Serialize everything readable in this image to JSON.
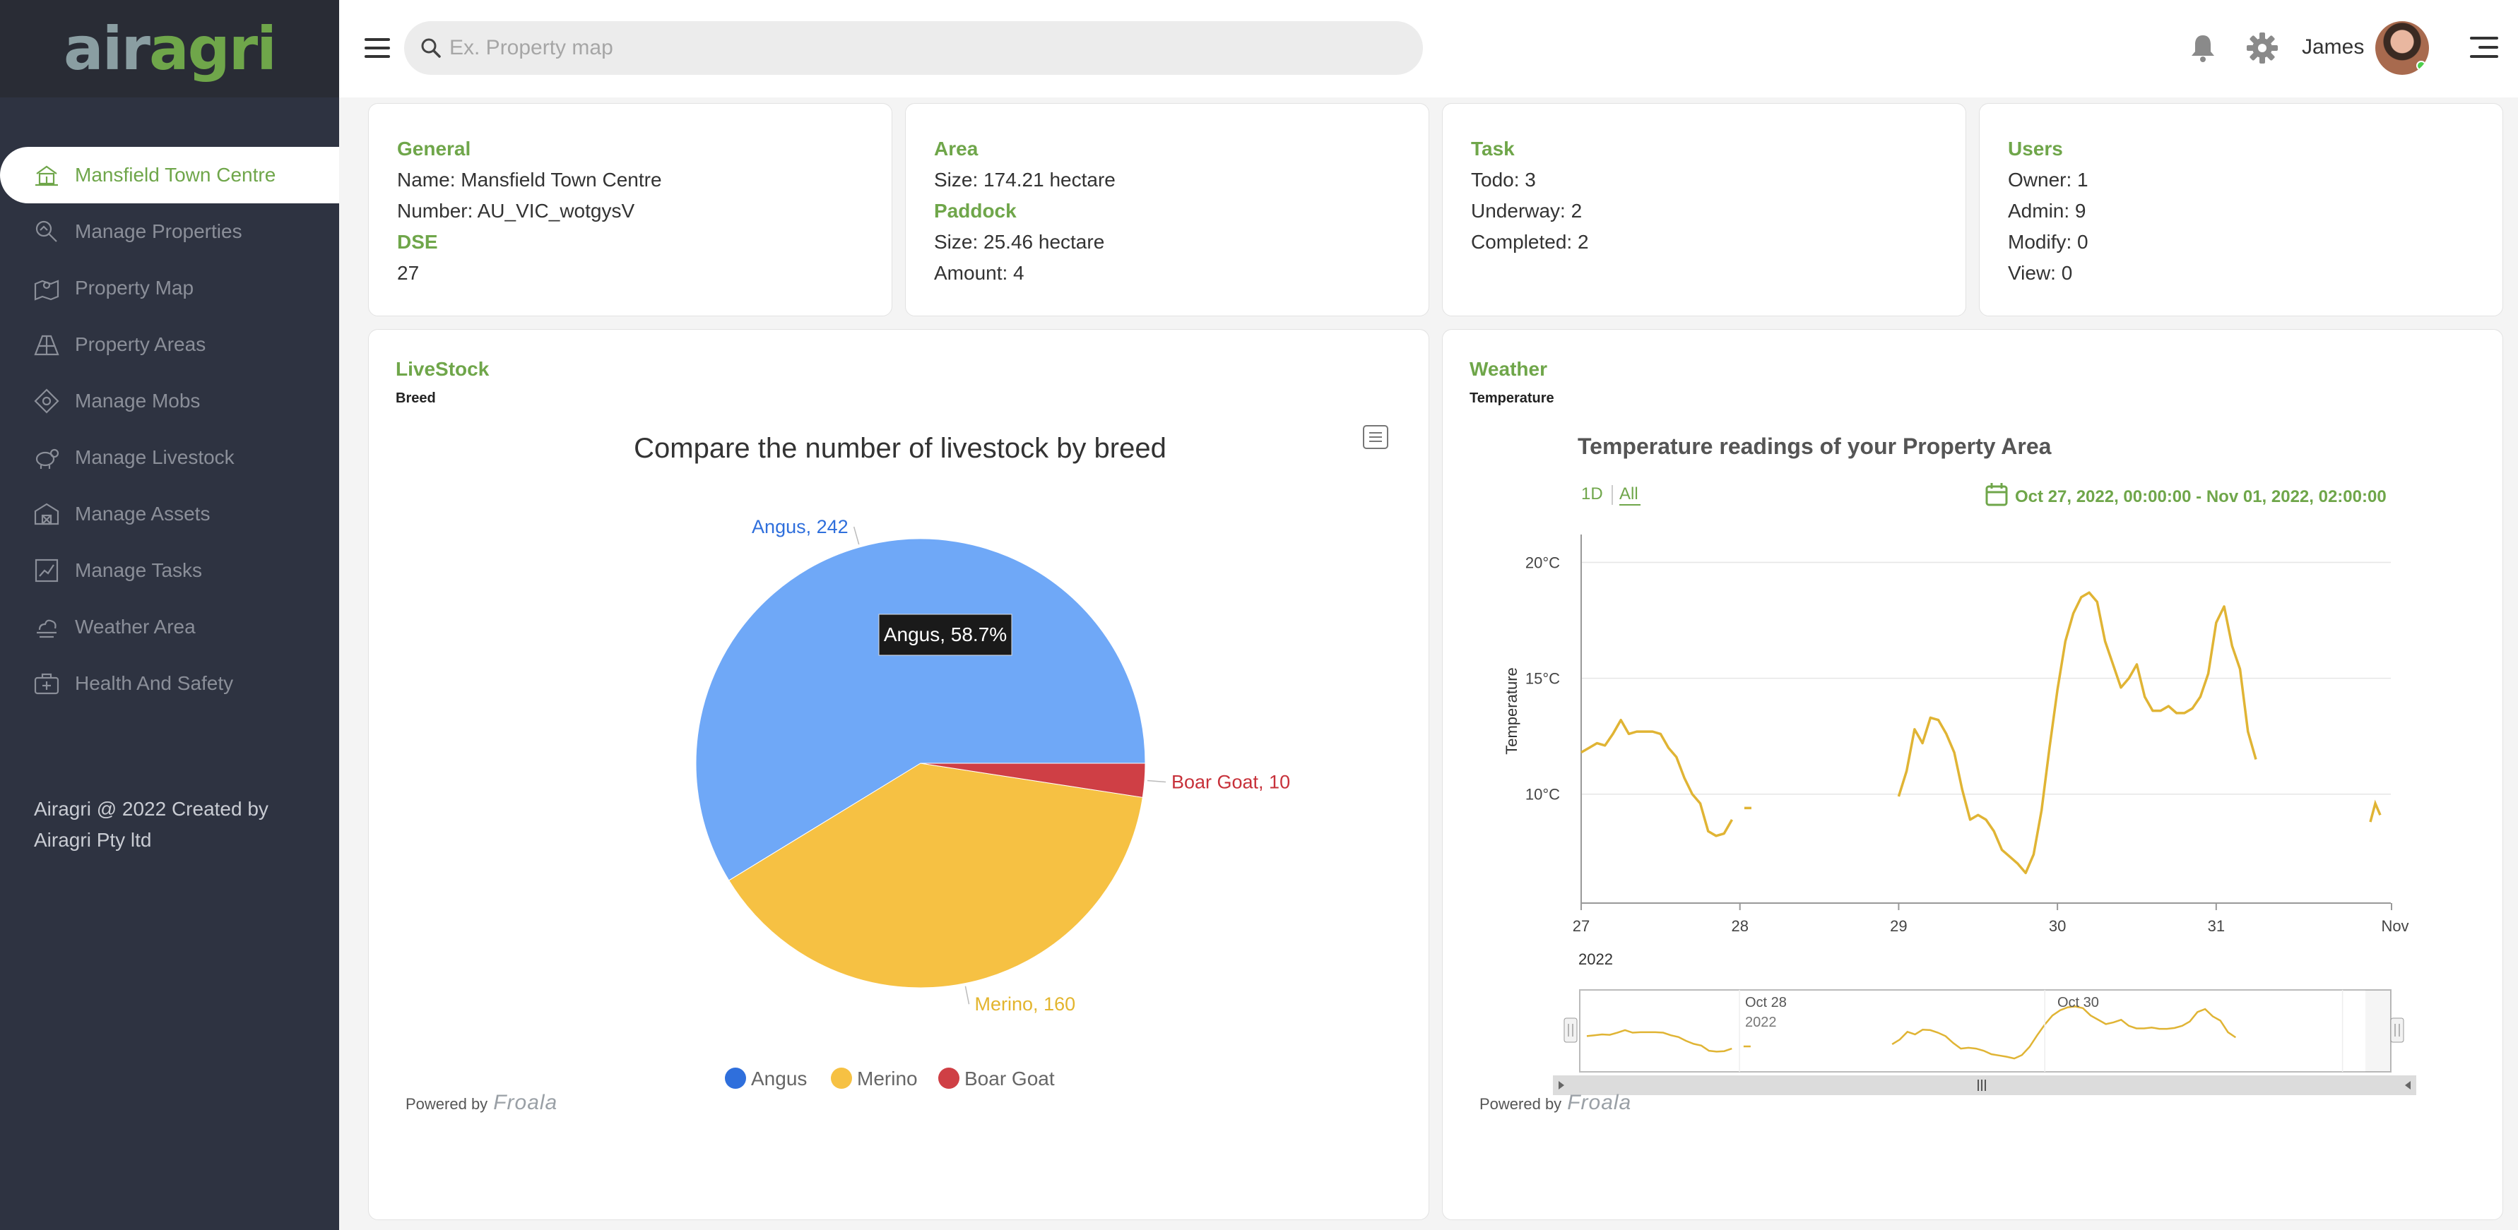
{
  "app": {
    "logo_part1": "air",
    "logo_part2": "agri"
  },
  "sidebar": {
    "items": [
      {
        "label": "Mansfield Town Centre",
        "icon": "farmhouse-icon",
        "active": true
      },
      {
        "label": "Manage Properties",
        "icon": "search-property-icon"
      },
      {
        "label": "Property Map",
        "icon": "map-pin-icon"
      },
      {
        "label": "Property Areas",
        "icon": "field-area-icon"
      },
      {
        "label": "Manage Mobs",
        "icon": "mob-icon"
      },
      {
        "label": "Manage Livestock",
        "icon": "sheep-icon"
      },
      {
        "label": "Manage Assets",
        "icon": "barn-icon"
      },
      {
        "label": "Manage Tasks",
        "icon": "task-chart-icon"
      },
      {
        "label": "Weather Area",
        "icon": "weather-icon"
      },
      {
        "label": "Health And Safety",
        "icon": "first-aid-kit-icon"
      }
    ],
    "footer": "Airagri @ 2022 Created by Airagri Pty ltd"
  },
  "topbar": {
    "search_placeholder": "Ex. Property map",
    "username": "James"
  },
  "cards": {
    "general": {
      "title": "General",
      "name": "Name: Mansfield Town Centre",
      "number": "Number: AU_VIC_wotgysV",
      "dse_label": "DSE",
      "dse_value": "27"
    },
    "area": {
      "title": "Area",
      "size": "Size: 174.21 hectare",
      "paddock_label": "Paddock",
      "paddock_size": "Size: 25.46 hectare",
      "amount": "Amount: 4"
    },
    "task": {
      "title": "Task",
      "todo": "Todo: 3",
      "underway": "Underway: 2",
      "completed": "Completed: 2"
    },
    "users": {
      "title": "Users",
      "owner": "Owner: 1",
      "admin": "Admin: 9",
      "modify": "Modify: 0",
      "view": "View: 0"
    }
  },
  "livestock": {
    "title": "LiveStock",
    "subtitle": "Breed",
    "powered_by": "Powered by",
    "brand": "Froala",
    "tooltip": "Angus, 58.7%"
  },
  "weather": {
    "title": "Weather",
    "subtitle": "Temperature",
    "powered_by": "Powered by",
    "brand": "Froala",
    "range_1d": "1D",
    "range_all": "All",
    "date_range": "Oct 27, 2022, 00:00:00 - Nov 01, 2022, 02:00:00",
    "year": "2022",
    "nav_labels": [
      "Oct 28",
      "2022",
      "Oct 30"
    ]
  },
  "colors": {
    "accent": "#6fa64a",
    "sidebar_bg": "#2e3341",
    "angus": "#6fa8f7",
    "merino": "#f6c143",
    "boar_goat": "#cf3f45",
    "temp_line": "#e0b434"
  },
  "chart_data": [
    {
      "type": "pie",
      "title": "Compare the number of livestock by breed",
      "categories": [
        "Angus",
        "Merino",
        "Boar Goat"
      ],
      "values": [
        242,
        160,
        10
      ],
      "data_labels": [
        "Angus, 242",
        "Merino, 160",
        "Boar Goat, 10"
      ],
      "legend_position": "bottom"
    },
    {
      "type": "line",
      "title": "Temperature readings of your Property Area",
      "ylabel": "Temperature",
      "y_ticks": [
        "10°C",
        "15°C",
        "20°C"
      ],
      "x_ticks": [
        "27",
        "28",
        "29",
        "30",
        "31",
        "Nov"
      ],
      "grid": true,
      "series": [
        {
          "x_days": [
            27.0,
            27.05,
            27.1,
            27.15,
            27.2,
            27.25,
            27.3,
            27.35,
            27.4,
            27.45,
            27.5,
            27.55,
            27.6,
            27.65,
            27.7,
            27.75,
            27.8,
            27.85,
            27.9,
            27.95,
            28.0,
            28.05,
            28.1,
            28.15,
            28.2,
            28.25,
            28.3,
            28.35,
            28.4,
            28.45,
            28.5,
            28.55,
            28.6,
            28.65,
            28.7,
            28.75,
            28.8,
            28.85,
            28.9,
            28.95,
            29.0,
            29.05,
            29.1,
            29.15,
            29.2,
            29.25,
            29.3,
            29.35,
            29.4,
            29.45,
            29.5,
            29.55,
            29.6,
            29.65,
            29.7,
            29.75,
            29.8,
            29.85,
            29.9,
            29.95,
            30.0,
            30.05,
            30.1,
            30.15,
            30.2,
            30.25,
            30.3,
            30.35,
            30.4,
            30.45,
            30.5,
            30.55,
            30.6,
            30.65,
            30.7,
            30.75,
            30.8,
            30.85,
            30.9,
            30.95,
            31.0,
            31.05,
            31.1,
            31.15,
            31.2,
            31.25
          ],
          "values": [
            11.8,
            12.0,
            12.2,
            12.1,
            12.6,
            13.2,
            12.6,
            12.7,
            12.7,
            12.7,
            12.6,
            12.0,
            11.6,
            10.7,
            10.0,
            9.6,
            8.4,
            8.2,
            8.3,
            8.9,
            null,
            9.4,
            null,
            null,
            null,
            null,
            null,
            null,
            null,
            null,
            null,
            null,
            null,
            null,
            null,
            null,
            null,
            null,
            null,
            null,
            9.9,
            11.0,
            12.8,
            12.2,
            13.3,
            13.2,
            12.6,
            11.8,
            10.2,
            8.9,
            9.1,
            8.9,
            8.4,
            7.6,
            7.3,
            7.0,
            6.6,
            7.4,
            9.3,
            12.0,
            14.5,
            16.6,
            17.8,
            18.5,
            18.7,
            18.3,
            16.6,
            15.6,
            14.6,
            15.0,
            15.6,
            14.2,
            13.6,
            13.6,
            13.8,
            13.5,
            13.5,
            13.7,
            14.2,
            15.2,
            17.4,
            18.1,
            16.4,
            15.4,
            12.7,
            11.5
          ]
        }
      ]
    }
  ]
}
